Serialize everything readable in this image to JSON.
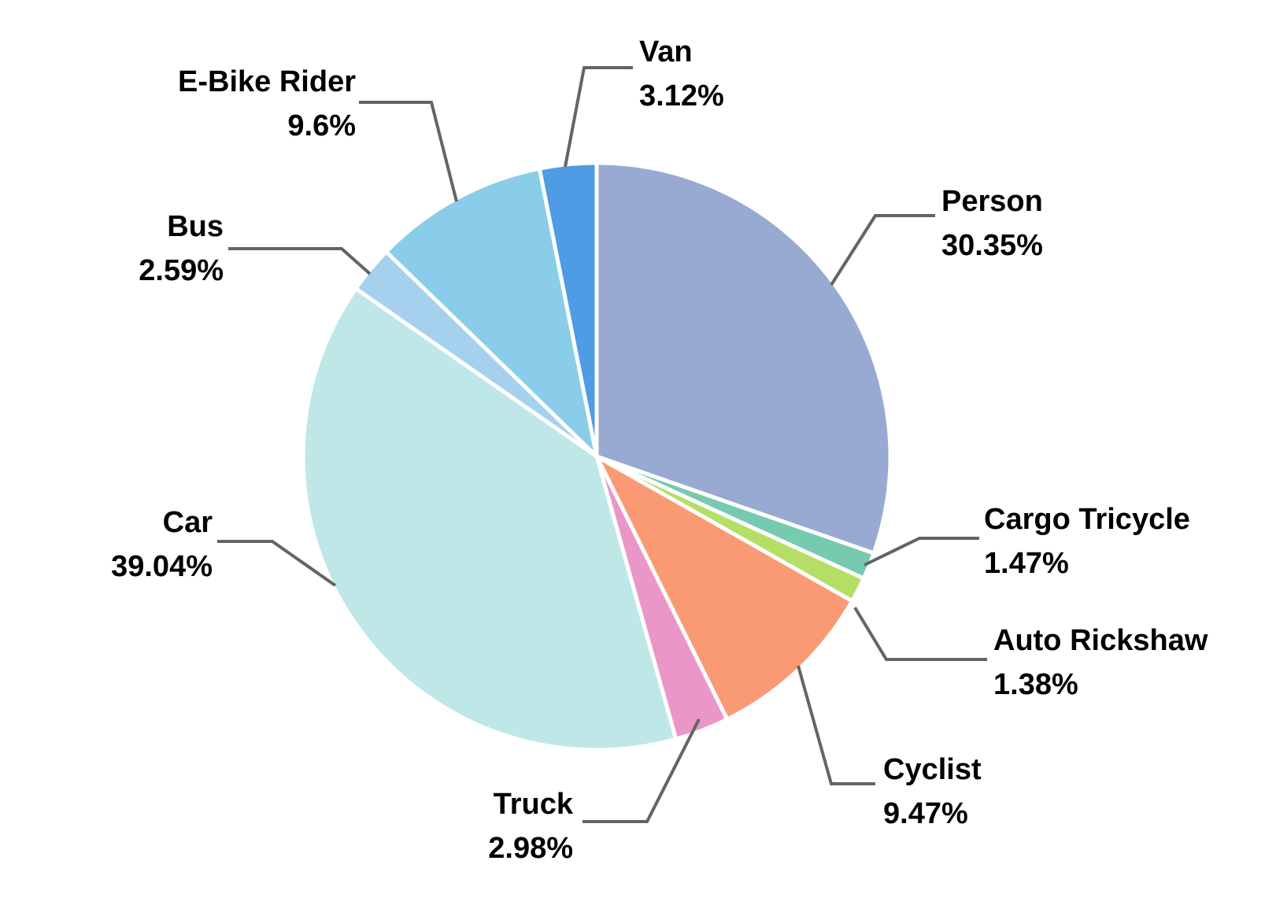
{
  "chart_data": {
    "type": "pie",
    "title": "",
    "start": "12 o'clock",
    "direction": "clockwise",
    "legend": "none (category labels with leader lines)",
    "slices": [
      {
        "name": "Person",
        "value": 30.35,
        "label": "30.35%",
        "color": "#98aad2"
      },
      {
        "name": "Cargo Tricycle",
        "value": 1.47,
        "label": "1.47%",
        "color": "#76cab0"
      },
      {
        "name": "Auto Rickshaw",
        "value": 1.38,
        "label": "1.38%",
        "color": "#b5de66"
      },
      {
        "name": "Cyclist",
        "value": 9.47,
        "label": "9.47%",
        "color": "#fa9a74"
      },
      {
        "name": "Truck",
        "value": 2.98,
        "label": "2.98%",
        "color": "#ea96c8"
      },
      {
        "name": "Car",
        "value": 39.04,
        "label": "39.04%",
        "color": "#bfe7e7"
      },
      {
        "name": "Bus",
        "value": 2.59,
        "label": "2.59%",
        "color": "#a5d1ee"
      },
      {
        "name": "E-Bike Rider",
        "value": 9.6,
        "label": "9.6%",
        "color": "#89cdea"
      },
      {
        "name": "Van",
        "value": 3.12,
        "label": "3.12%",
        "color": "#4f9be4"
      }
    ]
  }
}
